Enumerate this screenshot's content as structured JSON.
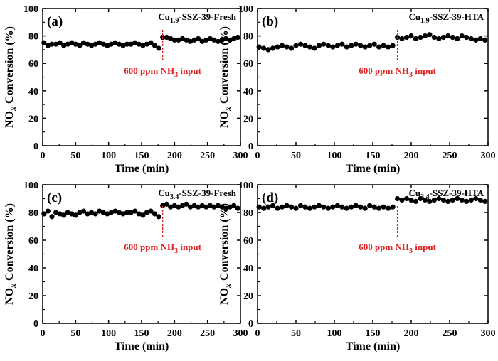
{
  "figure": {
    "colors": {
      "marker": "#000000",
      "annotation": "#e02020",
      "axis": "#000000"
    }
  },
  "chart_data": [
    {
      "type": "scatter",
      "panel_label": "(a)",
      "series_name": {
        "prefix": "Cu",
        "sub": "1.9",
        "suffix": "-SSZ-39-Fresh"
      },
      "xlabel": "Time (min)",
      "ylabel": {
        "prefix": "NO",
        "sub": "x",
        "suffix": " Conversion (%)"
      },
      "xlim": [
        0,
        300
      ],
      "ylim": [
        0,
        100
      ],
      "xticks": [
        "0",
        "50",
        "100",
        "150",
        "200",
        "250",
        "300"
      ],
      "yticks": [
        "0",
        "20",
        "40",
        "60",
        "80",
        "100"
      ],
      "annotation": {
        "x": 182,
        "text_prefix": "600 ppm NH",
        "text_sub": "3",
        "text_suffix": " input"
      },
      "x": [
        2,
        8,
        14,
        20,
        26,
        32,
        38,
        44,
        50,
        56,
        62,
        68,
        74,
        80,
        86,
        92,
        98,
        104,
        110,
        116,
        122,
        128,
        134,
        140,
        146,
        152,
        158,
        164,
        170,
        176,
        182,
        188,
        194,
        200,
        206,
        212,
        218,
        224,
        230,
        236,
        242,
        248,
        254,
        260,
        266,
        272,
        278,
        284,
        290,
        296
      ],
      "y": [
        75,
        73,
        74,
        74,
        75,
        73,
        74,
        75,
        74,
        73,
        75,
        74,
        73,
        74,
        75,
        74,
        73,
        74,
        75,
        74,
        73,
        74,
        74,
        75,
        74,
        73,
        74,
        75,
        73,
        71,
        79,
        79,
        78,
        77,
        77,
        78,
        77,
        76,
        77,
        78,
        76,
        77,
        78,
        77,
        76,
        77,
        78,
        77,
        78,
        79
      ]
    },
    {
      "type": "scatter",
      "panel_label": "(b)",
      "series_name": {
        "prefix": "Cu",
        "sub": "1.9",
        "suffix": "-SSZ-39-HTA"
      },
      "xlabel": "Time (min)",
      "ylabel": {
        "prefix": "NO",
        "sub": "x",
        "suffix": " Conversion (%)"
      },
      "xlim": [
        0,
        300
      ],
      "ylim": [
        0,
        100
      ],
      "xticks": [
        "0",
        "50",
        "100",
        "150",
        "200",
        "250",
        "300"
      ],
      "yticks": [
        "0",
        "20",
        "40",
        "60",
        "80",
        "100"
      ],
      "annotation": {
        "x": 182,
        "text_prefix": "600 ppm NH",
        "text_sub": "3",
        "text_suffix": " input"
      },
      "x": [
        2,
        8,
        14,
        20,
        26,
        32,
        38,
        44,
        50,
        56,
        62,
        68,
        74,
        80,
        86,
        92,
        98,
        104,
        110,
        116,
        122,
        128,
        134,
        140,
        146,
        152,
        158,
        164,
        170,
        176,
        182,
        188,
        194,
        200,
        206,
        212,
        218,
        224,
        230,
        236,
        242,
        248,
        254,
        260,
        266,
        272,
        278,
        284,
        290,
        296
      ],
      "y": [
        72,
        71,
        70,
        71,
        72,
        73,
        72,
        71,
        73,
        74,
        73,
        72,
        71,
        73,
        74,
        73,
        72,
        73,
        74,
        72,
        73,
        74,
        73,
        72,
        73,
        74,
        72,
        73,
        72,
        73,
        79,
        78,
        79,
        80,
        78,
        79,
        80,
        81,
        79,
        78,
        79,
        80,
        79,
        78,
        80,
        79,
        78,
        77,
        78,
        77
      ]
    },
    {
      "type": "scatter",
      "panel_label": "(c)",
      "series_name": {
        "prefix": "Cu",
        "sub": "3.4",
        "suffix": "-SSZ-39-Fresh"
      },
      "xlabel": "Time (min)",
      "ylabel": {
        "prefix": "NO",
        "sub": "x",
        "suffix": " Conversion (%)"
      },
      "xlim": [
        0,
        300
      ],
      "ylim": [
        0,
        100
      ],
      "xticks": [
        "0",
        "50",
        "100",
        "150",
        "200",
        "250",
        "300"
      ],
      "yticks": [
        "0",
        "20",
        "40",
        "60",
        "80",
        "100"
      ],
      "annotation": {
        "x": 182,
        "text_prefix": "600 ppm NH",
        "text_sub": "3",
        "text_suffix": " input"
      },
      "x": [
        2,
        8,
        14,
        20,
        26,
        32,
        38,
        44,
        50,
        56,
        62,
        68,
        74,
        80,
        86,
        92,
        98,
        104,
        110,
        116,
        122,
        128,
        134,
        140,
        146,
        152,
        158,
        164,
        170,
        176,
        182,
        188,
        194,
        200,
        206,
        212,
        218,
        224,
        230,
        236,
        242,
        248,
        254,
        260,
        266,
        272,
        278,
        284,
        290,
        296
      ],
      "y": [
        79,
        81,
        77,
        80,
        79,
        78,
        80,
        79,
        78,
        80,
        81,
        79,
        80,
        79,
        81,
        80,
        79,
        80,
        81,
        80,
        79,
        80,
        80,
        81,
        79,
        78,
        80,
        81,
        79,
        77,
        85,
        86,
        84,
        85,
        84,
        85,
        86,
        84,
        85,
        84,
        85,
        84,
        85,
        84,
        85,
        84,
        83,
        84,
        85,
        83
      ]
    },
    {
      "type": "scatter",
      "panel_label": "(d)",
      "series_name": {
        "prefix": "Cu",
        "sub": "3.4",
        "suffix": "-SSZ-39-HTA"
      },
      "xlabel": "Time (min)",
      "ylabel": {
        "prefix": "NO",
        "sub": "x",
        "suffix": " Conversion (%)"
      },
      "xlim": [
        0,
        300
      ],
      "ylim": [
        0,
        100
      ],
      "xticks": [
        "0",
        "50",
        "100",
        "150",
        "200",
        "250",
        "300"
      ],
      "yticks": [
        "0",
        "20",
        "40",
        "60",
        "80",
        "100"
      ],
      "annotation": {
        "x": 182,
        "text_prefix": "600 ppm NH",
        "text_sub": "3",
        "text_suffix": " input"
      },
      "x": [
        2,
        8,
        14,
        20,
        26,
        32,
        38,
        44,
        50,
        56,
        62,
        68,
        74,
        80,
        86,
        92,
        98,
        104,
        110,
        116,
        122,
        128,
        134,
        140,
        146,
        152,
        158,
        164,
        170,
        176,
        182,
        188,
        194,
        200,
        206,
        212,
        218,
        224,
        230,
        236,
        242,
        248,
        254,
        260,
        266,
        272,
        278,
        284,
        290,
        296
      ],
      "y": [
        84,
        83,
        84,
        85,
        83,
        84,
        85,
        84,
        83,
        85,
        84,
        83,
        84,
        85,
        84,
        83,
        84,
        85,
        84,
        83,
        84,
        85,
        84,
        83,
        85,
        84,
        83,
        84,
        83,
        84,
        90,
        89,
        90,
        89,
        88,
        90,
        89,
        88,
        89,
        90,
        89,
        88,
        89,
        90,
        89,
        88,
        89,
        90,
        89,
        88
      ]
    }
  ]
}
